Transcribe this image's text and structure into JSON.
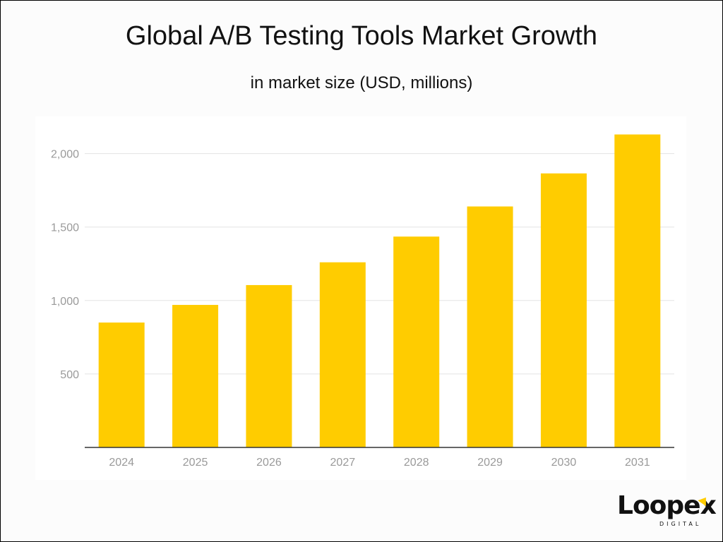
{
  "title": "Global A/B Testing Tools Market Growth",
  "subtitle": "in market size (USD, millions)",
  "logo": {
    "word": "Loopex",
    "sub": "DIGITAL"
  },
  "colors": {
    "bar": "#ffcc00",
    "grid": "#e3e3e3",
    "axis": "#333333",
    "tick_text": "#9a9a9a"
  },
  "chart_data": {
    "type": "bar",
    "title": "Global A/B Testing Tools Market Growth",
    "subtitle": "in market size (USD, millions)",
    "categories": [
      "2024",
      "2025",
      "2026",
      "2027",
      "2028",
      "2029",
      "2030",
      "2031"
    ],
    "values": [
      850,
      970,
      1105,
      1260,
      1435,
      1640,
      1865,
      2130
    ],
    "yticks": [
      500,
      1000,
      1500,
      2000
    ],
    "ytick_labels": [
      "500",
      "1,000",
      "1,500",
      "2,000"
    ],
    "ylim": [
      0,
      2250
    ],
    "grid": true,
    "legend": "none"
  }
}
